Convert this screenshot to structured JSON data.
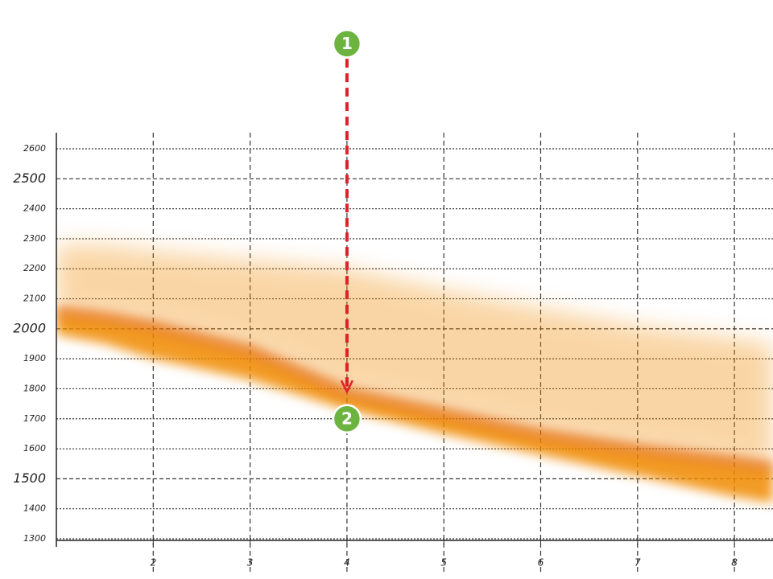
{
  "chart_data": {
    "type": "band",
    "x": [
      1,
      1.5,
      2,
      3,
      4,
      5,
      6,
      7,
      8,
      8.4
    ],
    "center": [
      2060,
      2040,
      2010,
      1930,
      1790,
      1720,
      1650,
      1600,
      1560,
      1540
    ],
    "upper": [
      2280,
      2280,
      2260,
      2230,
      2200,
      2130,
      2070,
      2010,
      1970,
      1950
    ],
    "lower": [
      1980,
      1950,
      1900,
      1830,
      1730,
      1650,
      1580,
      1510,
      1440,
      1420
    ],
    "color": "#f08a00",
    "xlim": [
      1,
      8.4
    ],
    "ylim": [
      1300,
      2600
    ],
    "xticks": [
      2,
      3,
      4,
      5,
      6,
      7,
      8
    ],
    "yticks": [
      1300,
      1400,
      1500,
      1600,
      1700,
      1800,
      1900,
      2000,
      2100,
      2200,
      2300,
      2400,
      2500,
      2600
    ],
    "major_yticks": [
      1500,
      2000,
      2500
    ],
    "grid": true,
    "annotations": [
      {
        "label": "1",
        "x": 4,
        "y": 2950,
        "color": "#6db33f"
      },
      {
        "label": "2",
        "x": 4,
        "y": 1700,
        "color": "#6db33f"
      }
    ],
    "arrow": {
      "x": 4,
      "from": 2900,
      "to": 1790,
      "color": "#e0202a"
    }
  }
}
